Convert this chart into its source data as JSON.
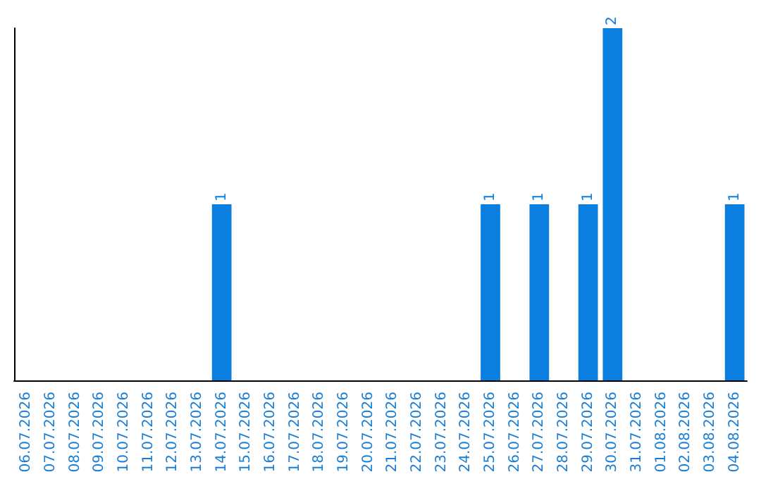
{
  "chart_data": {
    "type": "bar",
    "categories": [
      "06.07.2026",
      "07.07.2026",
      "08.07.2026",
      "09.07.2026",
      "10.07.2026",
      "11.07.2026",
      "12.07.2026",
      "13.07.2026",
      "14.07.2026",
      "15.07.2026",
      "16.07.2026",
      "17.07.2026",
      "18.07.2026",
      "19.07.2026",
      "20.07.2026",
      "21.07.2026",
      "22.07.2026",
      "23.07.2026",
      "24.07.2026",
      "25.07.2026",
      "26.07.2026",
      "27.07.2026",
      "28.07.2026",
      "29.07.2026",
      "30.07.2026",
      "31.07.2026",
      "01.08.2026",
      "02.08.2026",
      "03.08.2026",
      "04.08.2026"
    ],
    "values": [
      0,
      0,
      0,
      0,
      0,
      0,
      0,
      0,
      1,
      0,
      0,
      0,
      0,
      0,
      0,
      0,
      0,
      0,
      0,
      1,
      0,
      1,
      0,
      1,
      2,
      0,
      0,
      0,
      0,
      1
    ],
    "value_labels": [
      null,
      null,
      null,
      null,
      null,
      null,
      null,
      null,
      "1",
      null,
      null,
      null,
      null,
      null,
      null,
      null,
      null,
      null,
      null,
      "1",
      null,
      "1",
      null,
      "1",
      "2",
      null,
      null,
      null,
      null,
      "1"
    ],
    "color": "#0a7fe0",
    "tick_labels": "x"
  }
}
